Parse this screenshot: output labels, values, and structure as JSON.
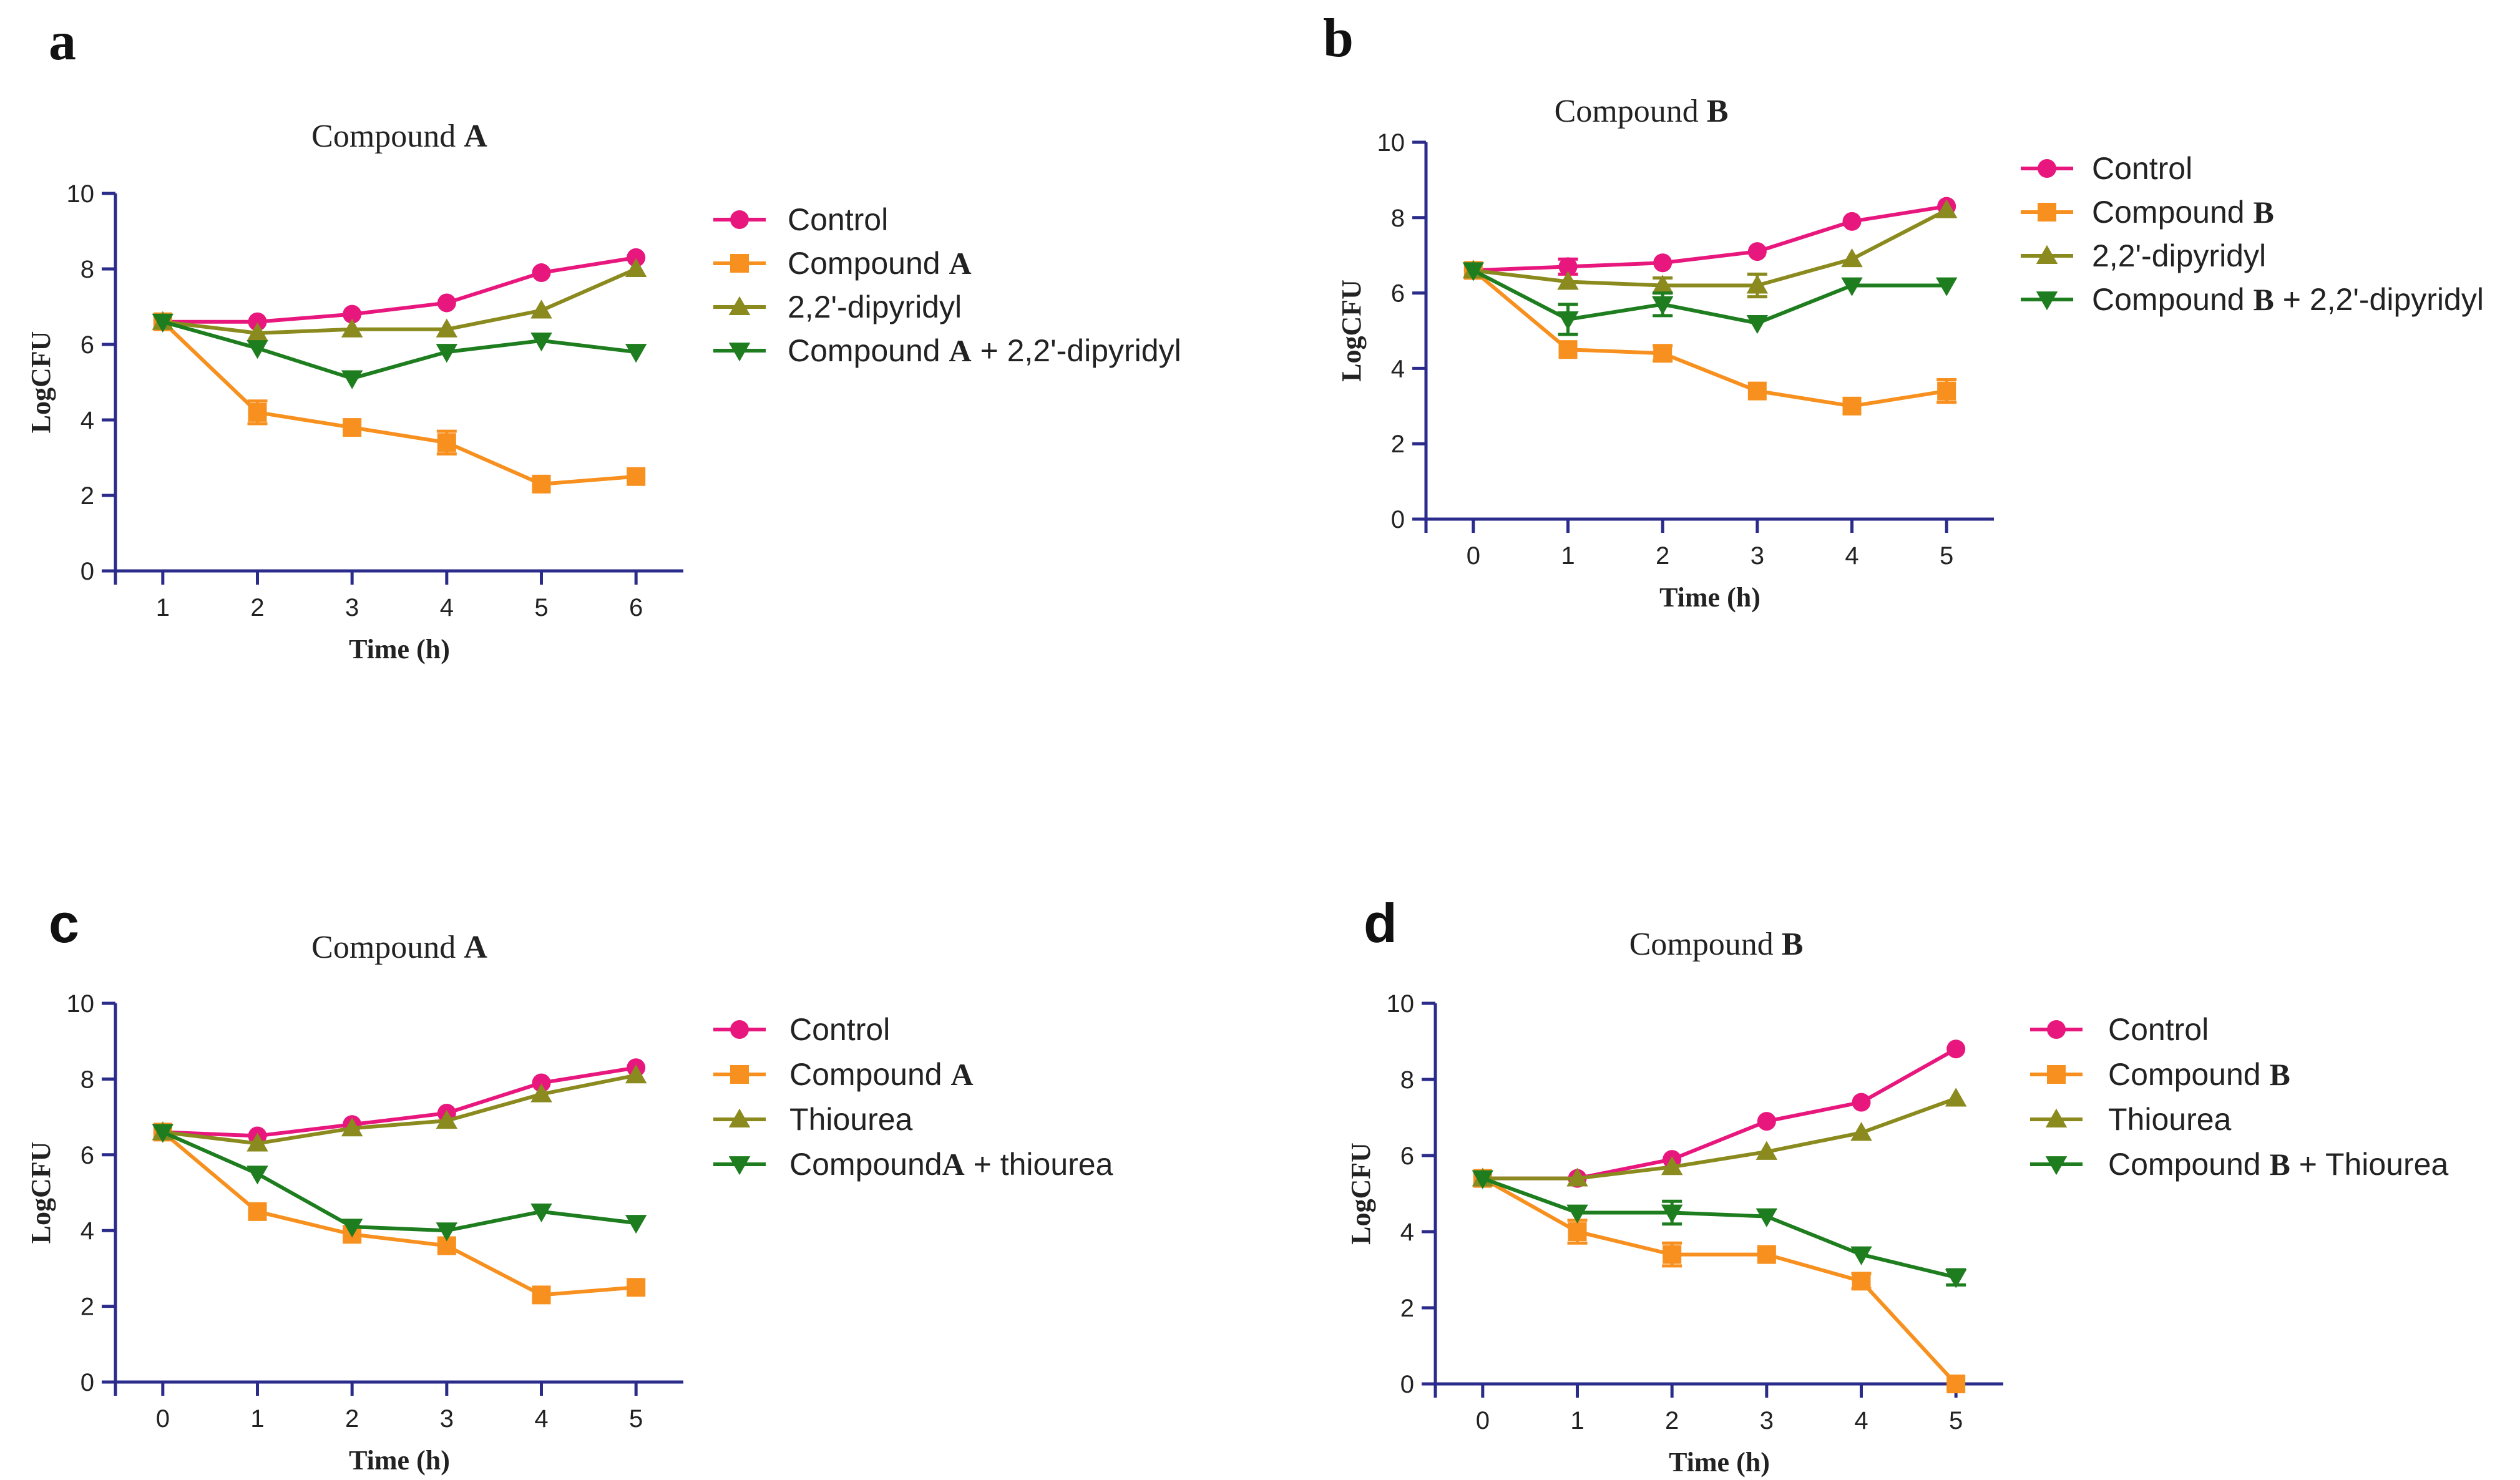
{
  "colors": {
    "axis": "#2b2b8c",
    "series": [
      "#e8177d",
      "#f7901e",
      "#8a8a1e",
      "#1e7d1e"
    ]
  },
  "chart_data": [
    {
      "panel_label": "a",
      "type": "line",
      "title_prefix": "Compound ",
      "title_bold": "A",
      "xlabel": "Time (h)",
      "ylabel": "LogCFU",
      "xlim": [
        0.5,
        6.5
      ],
      "ylim": [
        0,
        10
      ],
      "xticks": [
        1,
        2,
        3,
        4,
        5,
        6
      ],
      "yticks": [
        0,
        2,
        4,
        6,
        8,
        10
      ],
      "x": [
        1,
        2,
        3,
        4,
        5,
        6
      ],
      "legend_position": "right",
      "series": [
        {
          "name": "Control",
          "marker": "circle",
          "values": [
            6.6,
            6.6,
            6.8,
            7.1,
            7.9,
            8.3
          ],
          "errors": [
            0,
            0,
            0,
            0,
            0,
            0
          ],
          "legend_parts": [
            {
              "text": "Control",
              "bold": false
            }
          ]
        },
        {
          "name": "Compound A",
          "marker": "square",
          "values": [
            6.6,
            4.2,
            3.8,
            3.4,
            2.3,
            2.5
          ],
          "errors": [
            0,
            0.3,
            0,
            0.3,
            0,
            0
          ],
          "legend_parts": [
            {
              "text": "Compound ",
              "bold": false
            },
            {
              "text": "A",
              "bold": true
            }
          ]
        },
        {
          "name": "2,2'-dipyridyl",
          "marker": "triangle-up",
          "values": [
            6.6,
            6.3,
            6.4,
            6.4,
            6.9,
            8.0
          ],
          "errors": [
            0,
            0,
            0,
            0,
            0,
            0
          ],
          "legend_parts": [
            {
              "text": "2,2'-dipyridyl",
              "bold": false
            }
          ]
        },
        {
          "name": "Compound A + 2,2'-dipyridyl",
          "marker": "triangle-down",
          "values": [
            6.6,
            5.9,
            5.1,
            5.8,
            6.1,
            5.8
          ],
          "errors": [
            0,
            0,
            0,
            0,
            0,
            0
          ],
          "legend_parts": [
            {
              "text": "Compound ",
              "bold": false
            },
            {
              "text": "A",
              "bold": true
            },
            {
              "text": " + 2,2'-dipyridyl",
              "bold": false
            }
          ]
        }
      ]
    },
    {
      "panel_label": "b",
      "type": "line",
      "title_prefix": "Compound ",
      "title_bold": "B",
      "xlabel": "Time (h)",
      "ylabel": "LogCFU",
      "xlim": [
        -0.5,
        5.5
      ],
      "ylim": [
        0,
        10
      ],
      "xticks": [
        0,
        1,
        2,
        3,
        4,
        5
      ],
      "yticks": [
        0,
        2,
        4,
        6,
        8,
        10
      ],
      "x": [
        0,
        1,
        2,
        3,
        4,
        5
      ],
      "legend_position": "right",
      "series": [
        {
          "name": "Control",
          "marker": "circle",
          "values": [
            6.6,
            6.7,
            6.8,
            7.1,
            7.9,
            8.3
          ],
          "errors": [
            0,
            0.2,
            0,
            0,
            0,
            0
          ],
          "legend_parts": [
            {
              "text": "Control",
              "bold": false
            }
          ]
        },
        {
          "name": "Compound B",
          "marker": "square",
          "values": [
            6.6,
            4.5,
            4.4,
            3.4,
            3.0,
            3.4
          ],
          "errors": [
            0,
            0,
            0.2,
            0,
            0,
            0.3
          ],
          "legend_parts": [
            {
              "text": "Compound ",
              "bold": false
            },
            {
              "text": "B",
              "bold": true
            }
          ]
        },
        {
          "name": "2,2'-dipyridyl",
          "marker": "triangle-up",
          "values": [
            6.6,
            6.3,
            6.2,
            6.2,
            6.9,
            8.2
          ],
          "errors": [
            0,
            0,
            0.2,
            0.3,
            0,
            0
          ],
          "legend_parts": [
            {
              "text": "2,2'-dipyridyl",
              "bold": false
            }
          ]
        },
        {
          "name": "Compound B + 2,2'-dipyridyl",
          "marker": "triangle-down",
          "values": [
            6.6,
            5.3,
            5.7,
            5.2,
            6.2,
            6.2
          ],
          "errors": [
            0,
            0.4,
            0.3,
            0,
            0,
            0
          ],
          "legend_parts": [
            {
              "text": "Compound ",
              "bold": false
            },
            {
              "text": "B",
              "bold": true
            },
            {
              "text": " + 2,2'-dipyridyl",
              "bold": false
            }
          ]
        }
      ]
    },
    {
      "panel_label": "c",
      "type": "line",
      "title_prefix": "Compound ",
      "title_bold": "A",
      "xlabel": "Time (h)",
      "ylabel": "LogCFU",
      "xlim": [
        -0.5,
        5.5
      ],
      "ylim": [
        0,
        10
      ],
      "xticks": [
        0,
        1,
        2,
        3,
        4,
        5
      ],
      "yticks": [
        0,
        2,
        4,
        6,
        8,
        10
      ],
      "x": [
        0,
        1,
        2,
        3,
        4,
        5
      ],
      "legend_position": "right",
      "series": [
        {
          "name": "Control",
          "marker": "circle",
          "values": [
            6.6,
            6.5,
            6.8,
            7.1,
            7.9,
            8.3
          ],
          "errors": [
            0,
            0,
            0,
            0,
            0,
            0
          ],
          "legend_parts": [
            {
              "text": "Control",
              "bold": false
            }
          ]
        },
        {
          "name": "Compound A",
          "marker": "square",
          "values": [
            6.6,
            4.5,
            3.9,
            3.6,
            2.3,
            2.5
          ],
          "errors": [
            0,
            0,
            0,
            0,
            0,
            0
          ],
          "legend_parts": [
            {
              "text": "Compound ",
              "bold": false
            },
            {
              "text": "A",
              "bold": true
            }
          ]
        },
        {
          "name": "Thiourea",
          "marker": "triangle-up",
          "values": [
            6.6,
            6.3,
            6.7,
            6.9,
            7.6,
            8.1
          ],
          "errors": [
            0,
            0,
            0,
            0,
            0,
            0
          ],
          "legend_parts": [
            {
              "text": "Thiourea",
              "bold": false
            }
          ]
        },
        {
          "name": "CompoundA + thiourea",
          "marker": "triangle-down",
          "values": [
            6.6,
            5.5,
            4.1,
            4.0,
            4.5,
            4.2
          ],
          "errors": [
            0,
            0,
            0,
            0,
            0,
            0
          ],
          "legend_parts": [
            {
              "text": "Compound",
              "bold": false
            },
            {
              "text": "A",
              "bold": true
            },
            {
              "text": " + thiourea",
              "bold": false
            }
          ]
        }
      ]
    },
    {
      "panel_label": "d",
      "type": "line",
      "title_prefix": "Compound ",
      "title_bold": "B",
      "xlabel": "Time (h)",
      "ylabel": "LogCFU",
      "xlim": [
        -0.5,
        5.5
      ],
      "ylim": [
        0,
        10
      ],
      "xticks": [
        0,
        1,
        2,
        3,
        4,
        5
      ],
      "yticks": [
        0,
        2,
        4,
        6,
        8,
        10
      ],
      "x": [
        0,
        1,
        2,
        3,
        4,
        5
      ],
      "legend_position": "right",
      "series": [
        {
          "name": "Control",
          "marker": "circle",
          "values": [
            5.4,
            5.4,
            5.9,
            6.9,
            7.4,
            8.8
          ],
          "errors": [
            0,
            0,
            0,
            0,
            0,
            0
          ],
          "legend_parts": [
            {
              "text": "Control",
              "bold": false
            }
          ]
        },
        {
          "name": "Compound B",
          "marker": "square",
          "values": [
            5.4,
            4.0,
            3.4,
            3.4,
            2.7,
            0.0
          ],
          "errors": [
            0,
            0.3,
            0.3,
            0,
            0.2,
            0
          ],
          "legend_parts": [
            {
              "text": "Compound ",
              "bold": false
            },
            {
              "text": "B",
              "bold": true
            }
          ]
        },
        {
          "name": "Thiourea",
          "marker": "triangle-up",
          "values": [
            5.4,
            5.4,
            5.7,
            6.1,
            6.6,
            7.5
          ],
          "errors": [
            0,
            0,
            0,
            0,
            0,
            0
          ],
          "legend_parts": [
            {
              "text": "Thiourea",
              "bold": false
            }
          ]
        },
        {
          "name": "Compound B + Thiourea",
          "marker": "triangle-down",
          "values": [
            5.4,
            4.5,
            4.5,
            4.4,
            3.4,
            2.8
          ],
          "errors": [
            0,
            0,
            0.3,
            0,
            0,
            0.2
          ],
          "legend_parts": [
            {
              "text": "Compound ",
              "bold": false
            },
            {
              "text": "B",
              "bold": true
            },
            {
              "text": " + Thiourea",
              "bold": false
            }
          ]
        }
      ]
    }
  ]
}
